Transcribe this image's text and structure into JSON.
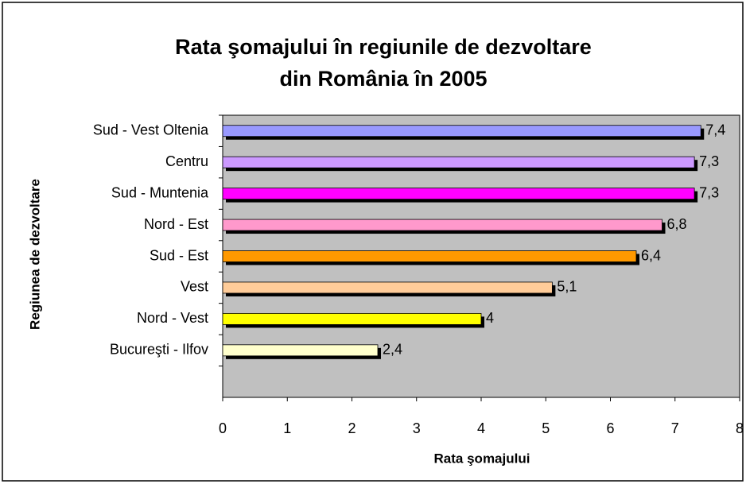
{
  "chart_data": {
    "type": "bar",
    "orientation": "horizontal",
    "title": [
      "Rata şomajului în regiunile de dezvoltare",
      "din România în 2005"
    ],
    "x_label": "Rata şomajului",
    "y_label": "Regiunea de dezvoltare",
    "categories": [
      "Sud - Vest Oltenia",
      "Centru",
      "Sud - Muntenia",
      "Nord - Est",
      "Sud - Est",
      "Vest",
      "Nord - Vest",
      "Bucureşti - Ilfov",
      null
    ],
    "values": [
      7.4,
      7.3,
      7.3,
      6.8,
      6.4,
      5.1,
      4,
      2.4,
      null
    ],
    "value_labels": [
      "7,4",
      "7,3",
      "7,3",
      "6,8",
      "6,4",
      "5,1",
      "4",
      "2,4",
      null
    ],
    "colors": [
      "#9999ff",
      "#cc99ff",
      "#ff00ff",
      "#ff99cc",
      "#ff9900",
      "#ffcc99",
      "#ffff00",
      "#ffffcc",
      null
    ],
    "xlim": [
      0,
      8
    ],
    "xticks": [
      0,
      1,
      2,
      3,
      4,
      5,
      6,
      7,
      8
    ],
    "grid": false
  }
}
